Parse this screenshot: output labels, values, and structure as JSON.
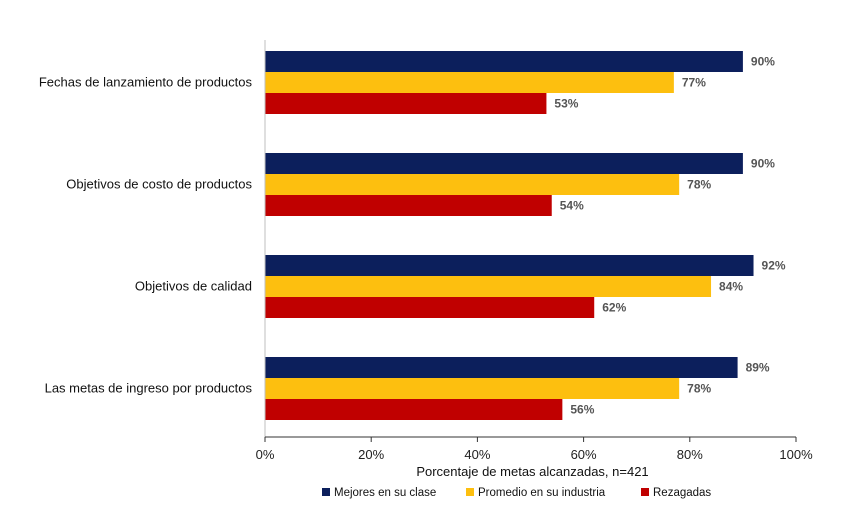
{
  "chart_data": {
    "type": "bar",
    "orientation": "horizontal",
    "categories": [
      "Fechas de lanzamiento de productos",
      "Objetivos de costo de productos",
      "Objetivos de calidad",
      "Las metas de ingreso por productos"
    ],
    "series": [
      {
        "name": "Mejores en su clase",
        "color": "#0c1f5c",
        "values": [
          90,
          90,
          92,
          89
        ]
      },
      {
        "name": "Promedio en su industria",
        "color": "#fdbf0f",
        "values": [
          77,
          78,
          84,
          78
        ]
      },
      {
        "name": "Rezagadas",
        "color": "#c00000",
        "values": [
          53,
          54,
          62,
          56
        ]
      }
    ],
    "data_labels": [
      [
        "90%",
        "77%",
        "53%"
      ],
      [
        "90%",
        "78%",
        "54%"
      ],
      [
        "92%",
        "84%",
        "62%"
      ],
      [
        "89%",
        "78%",
        "56%"
      ]
    ],
    "xlabel": "Porcentaje de metas alcanzadas, n=421",
    "xlim": [
      0,
      100
    ],
    "xticks": [
      0,
      20,
      40,
      60,
      80,
      100
    ],
    "xtick_labels": [
      "0%",
      "20%",
      "40%",
      "60%",
      "80%",
      "100%"
    ],
    "grid": false,
    "legend_position": "bottom"
  }
}
